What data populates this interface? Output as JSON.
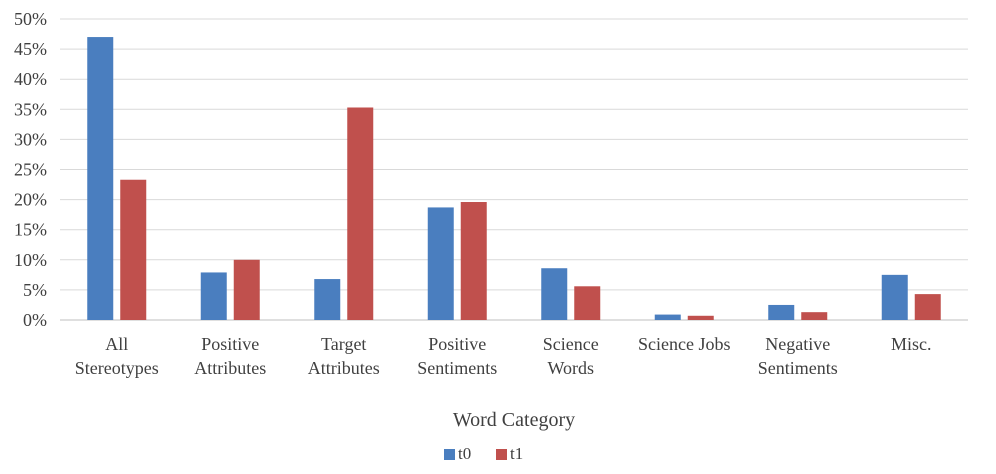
{
  "chart_data": {
    "type": "bar",
    "title": "",
    "xlabel": "Word Category",
    "ylabel": "",
    "ylim": [
      0,
      50
    ],
    "yticks": [
      "0%",
      "5%",
      "10%",
      "15%",
      "20%",
      "25%",
      "30%",
      "35%",
      "40%",
      "45%",
      "50%"
    ],
    "grid": true,
    "legend_position": "bottom",
    "categories": [
      [
        "All",
        "Stereotypes"
      ],
      [
        "Positive",
        "Attributes"
      ],
      [
        "Target",
        "Attributes"
      ],
      [
        "Positive",
        "Sentiments"
      ],
      [
        "Science",
        "Words"
      ],
      [
        "Science Jobs"
      ],
      [
        "Negative",
        "Sentiments"
      ],
      [
        "Misc."
      ]
    ],
    "series": [
      {
        "name": "t0",
        "color": "#4a7ebf",
        "values": [
          47.0,
          7.9,
          6.8,
          18.7,
          8.6,
          0.9,
          2.5,
          7.5
        ]
      },
      {
        "name": "t1",
        "color": "#c0504d",
        "values": [
          23.3,
          10.0,
          35.3,
          19.6,
          5.6,
          0.7,
          1.3,
          4.3
        ]
      }
    ]
  }
}
